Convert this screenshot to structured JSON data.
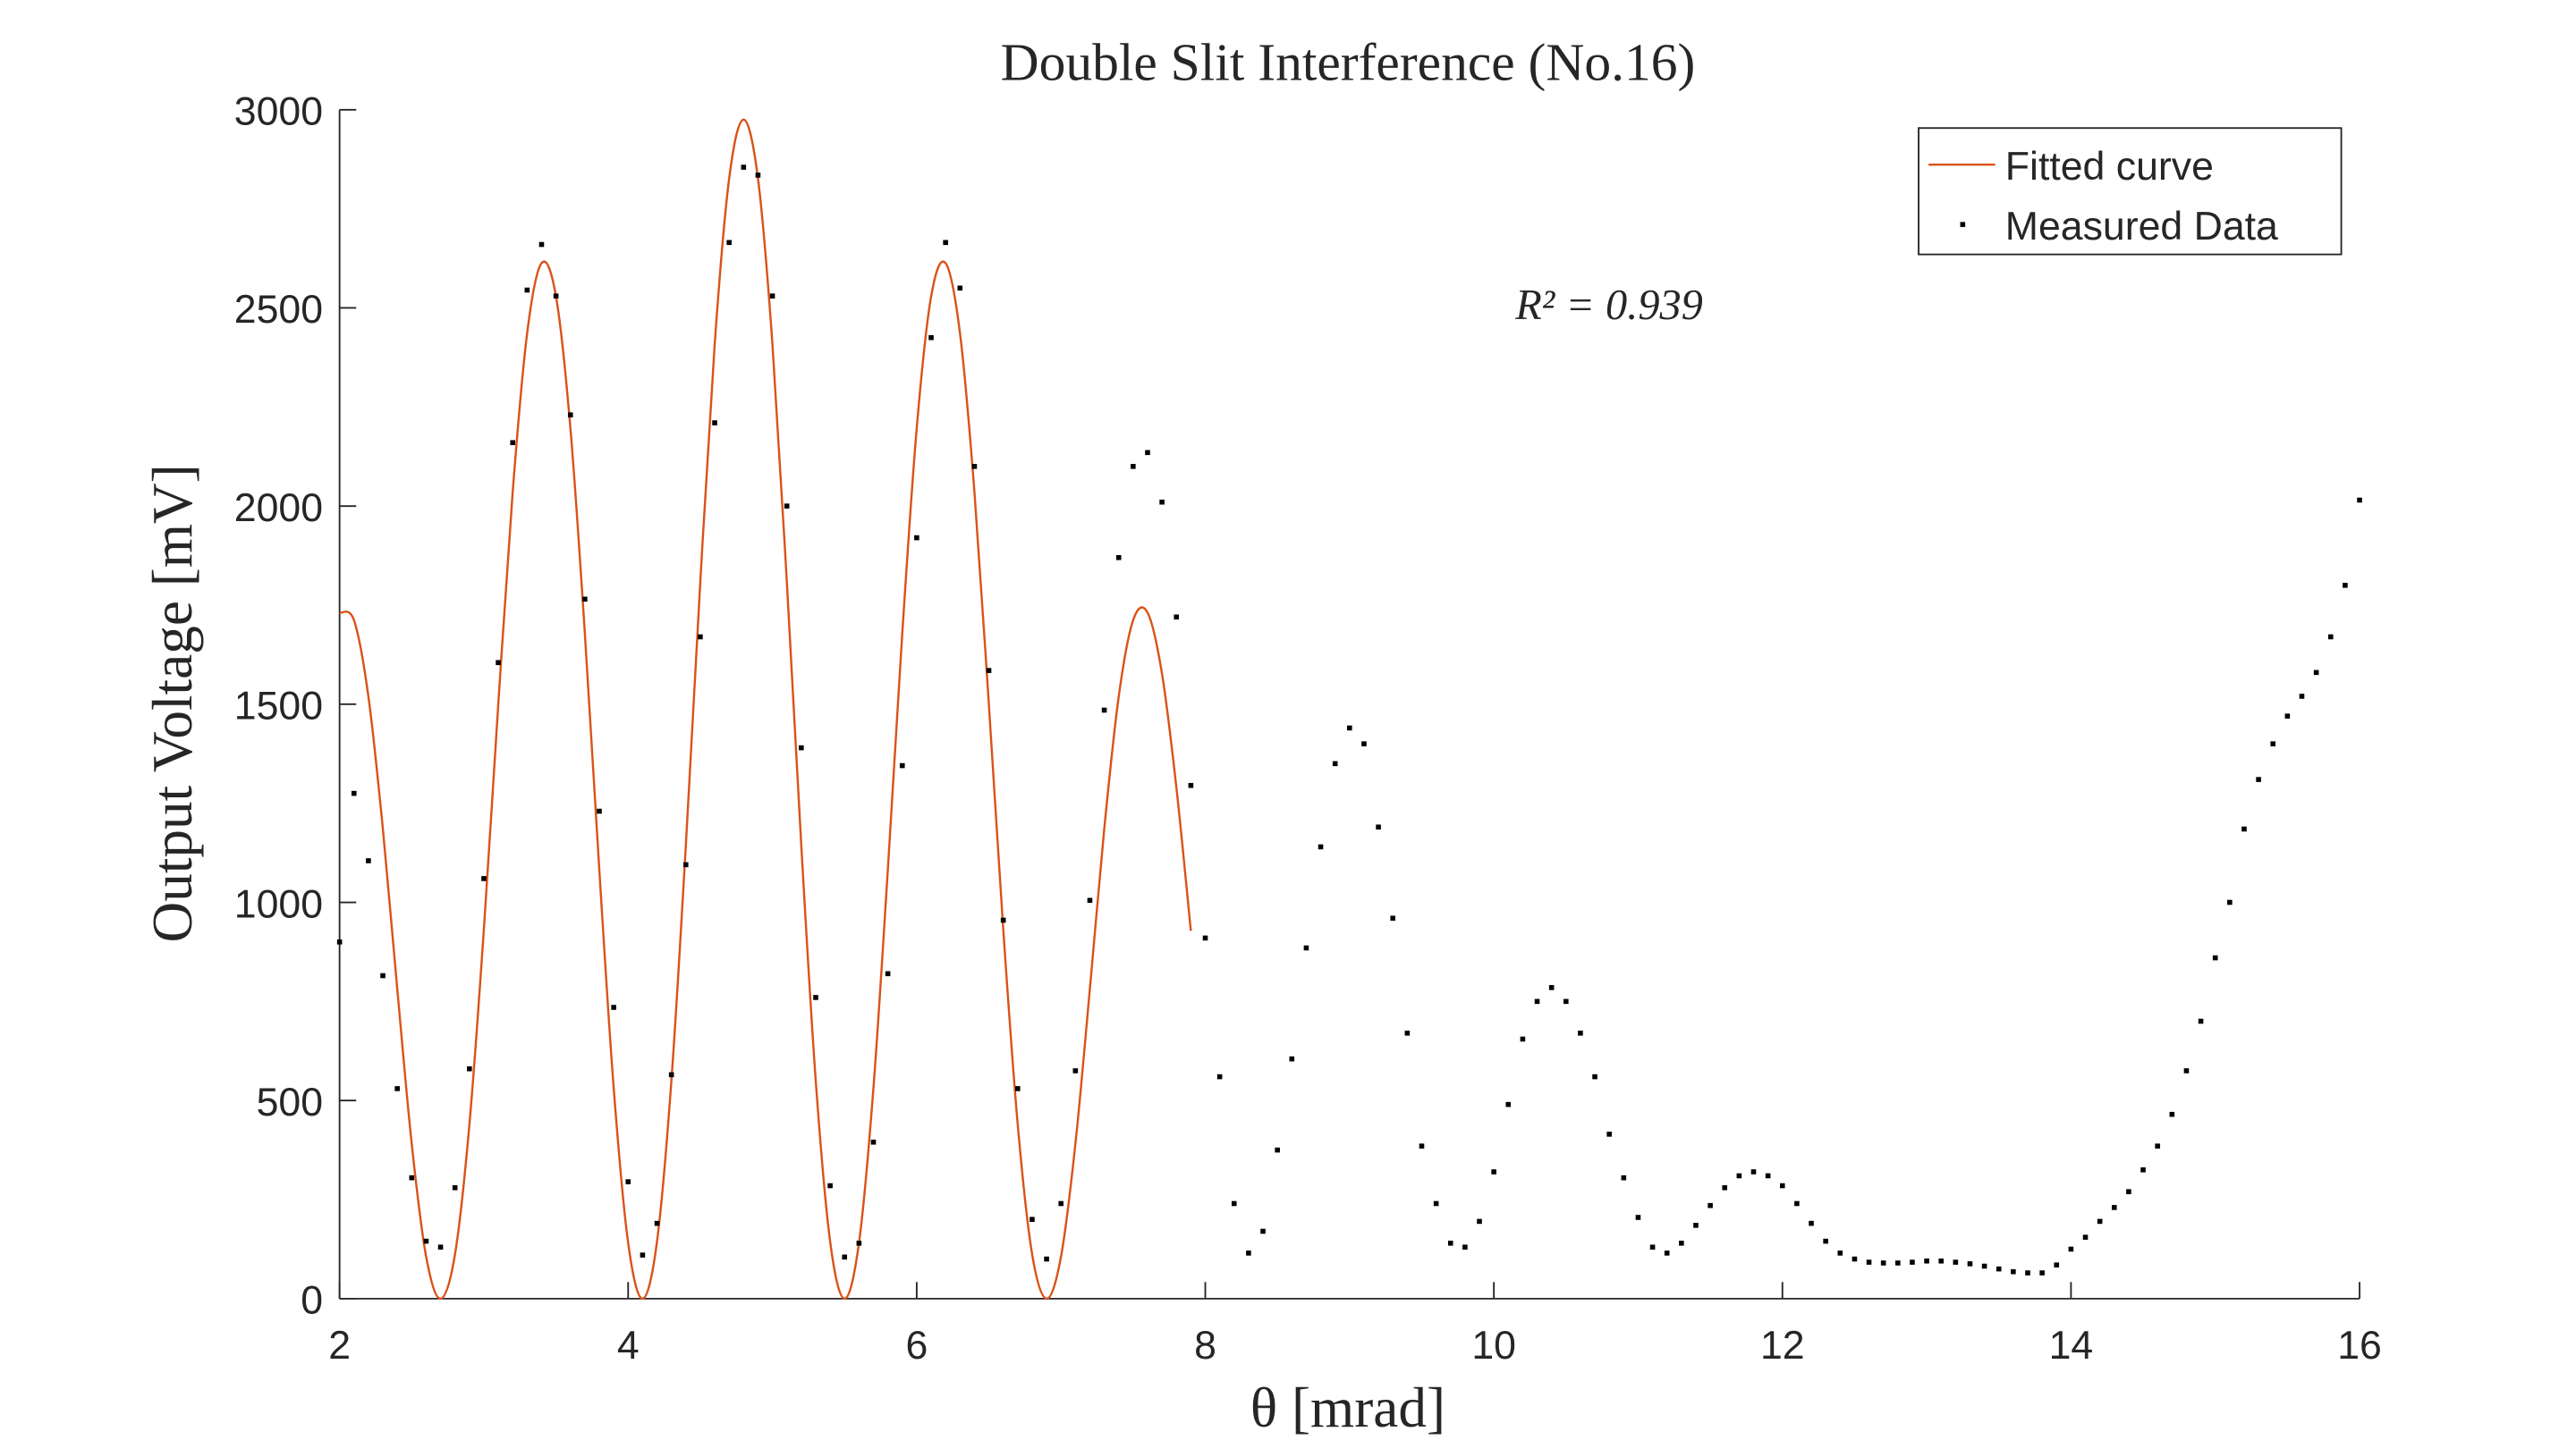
{
  "chart_data": {
    "type": "line_scatter",
    "title": "Double Slit Interference (No.16)",
    "xlabel": "θ [mrad]",
    "ylabel": "Output Voltage [mV]",
    "annotation": "R² = 0.939",
    "xlim": [
      2,
      16
    ],
    "xticks": [
      2,
      4,
      6,
      8,
      10,
      12,
      14,
      16
    ],
    "ylim": [
      0,
      3000
    ],
    "yticks": [
      0,
      500,
      1000,
      1500,
      2000,
      2500,
      3000
    ],
    "legend": "northeast",
    "series": [
      {
        "name": "Fitted curve",
        "kind": "line",
        "color": "#d95319",
        "x": [
          2,
          2.1,
          2.2,
          2.3,
          2.4,
          2.5,
          2.6,
          2.7,
          2.8,
          2.9,
          3,
          3.1,
          3.2,
          3.3,
          3.4,
          3.5,
          3.6,
          3.7,
          3.8,
          3.9,
          4,
          4.1,
          4.2,
          4.3,
          4.4,
          4.5,
          4.6,
          4.7,
          4.8,
          4.9,
          5,
          5.1,
          5.2,
          5.3,
          5.4,
          5.5,
          5.6,
          5.7,
          5.8,
          5.9,
          6,
          6.1,
          6.2,
          6.3,
          6.4,
          6.5,
          6.6,
          6.7,
          6.8,
          6.9,
          7,
          7.1,
          7.2,
          7.3,
          7.4,
          7.5,
          7.6,
          7.7,
          7.8,
          7.9
        ],
        "values": [
          1731,
          1712,
          1519,
          1186,
          781,
          391,
          106,
          0,
          112,
          440,
          931,
          1500,
          2036,
          2436,
          2613,
          2529,
          2196,
          1679,
          1083,
          531,
          141,
          0,
          144,
          551,
          1144,
          1808,
          2409,
          2826,
          2975,
          2826,
          2409,
          1808,
          1144,
          551,
          144,
          0,
          141,
          531,
          1083,
          1679,
          2196,
          2529,
          2613,
          2436,
          2036,
          1500,
          931,
          440,
          112,
          0,
          106,
          391,
          781,
          1186,
          1519,
          1712,
          1731,
          1577,
          1289,
          928
        ]
      },
      {
        "name": "Measured Data",
        "kind": "scatter",
        "color": "#000000",
        "x": [
          2,
          2.1,
          2.2,
          2.3,
          2.4,
          2.5,
          2.6,
          2.7,
          2.8,
          2.9,
          3,
          3.1,
          3.2,
          3.3,
          3.4,
          3.5,
          3.6,
          3.7,
          3.8,
          3.9,
          4,
          4.1,
          4.2,
          4.3,
          4.4,
          4.5,
          4.6,
          4.7,
          4.8,
          4.9,
          5,
          5.1,
          5.2,
          5.3,
          5.4,
          5.5,
          5.6,
          5.7,
          5.8,
          5.9,
          6,
          6.1,
          6.2,
          6.3,
          6.4,
          6.5,
          6.6,
          6.7,
          6.8,
          6.9,
          7,
          7.1,
          7.2,
          7.3,
          7.4,
          7.5,
          7.6,
          7.7,
          7.8,
          7.9,
          8,
          8.1,
          8.2,
          8.3,
          8.4,
          8.5,
          8.6,
          8.7,
          8.8,
          8.9,
          9,
          9.1,
          9.2,
          9.3,
          9.4,
          9.5,
          9.6,
          9.7,
          9.8,
          9.9,
          10,
          10.1,
          10.2,
          10.3,
          10.4,
          10.5,
          10.6,
          10.7,
          10.8,
          10.9,
          11,
          11.1,
          11.2,
          11.3,
          11.4,
          11.5,
          11.6,
          11.7,
          11.8,
          11.9,
          12,
          12.1,
          12.2,
          12.3,
          12.4,
          12.5,
          12.6,
          12.7,
          12.8,
          12.9,
          13,
          13.1,
          13.2,
          13.3,
          13.4,
          13.5,
          13.6,
          13.7,
          13.8,
          13.9,
          14,
          14.1,
          14.2,
          14.3,
          14.4,
          14.5,
          14.6,
          14.7,
          14.8,
          14.9,
          15,
          15.1,
          15.2,
          15.3,
          15.4,
          15.5,
          15.6,
          15.7,
          15.8,
          15.9,
          16
        ],
        "values": [
          900,
          1275,
          1105,
          815,
          530,
          305,
          145,
          130,
          280,
          580,
          1060,
          1605,
          2160,
          2545,
          2660,
          2530,
          2230,
          1765,
          1230,
          735,
          295,
          110,
          190,
          565,
          1095,
          1670,
          2210,
          2665,
          2855,
          2835,
          2530,
          2000,
          1390,
          760,
          285,
          105,
          140,
          395,
          820,
          1345,
          1920,
          2425,
          2665,
          2550,
          2100,
          1585,
          955,
          530,
          200,
          100,
          240,
          575,
          1005,
          1485,
          1870,
          2100,
          2135,
          2010,
          1720,
          1295,
          910,
          560,
          240,
          115,
          170,
          375,
          605,
          885,
          1140,
          1350,
          1440,
          1400,
          1190,
          960,
          670,
          385,
          240,
          140,
          130,
          195,
          320,
          490,
          655,
          750,
          785,
          750,
          670,
          560,
          415,
          305,
          205,
          130,
          115,
          140,
          185,
          235,
          280,
          310,
          320,
          310,
          285,
          240,
          190,
          145,
          115,
          100,
          92,
          90,
          90,
          92,
          95,
          95,
          92,
          88,
          82,
          75,
          68,
          65,
          65,
          85,
          125,
          155,
          195,
          230,
          270,
          325,
          385,
          465,
          575,
          700,
          860,
          1000,
          1185,
          1310,
          1400,
          1470,
          1520,
          1580,
          1670,
          1800,
          2015
        ]
      }
    ]
  }
}
